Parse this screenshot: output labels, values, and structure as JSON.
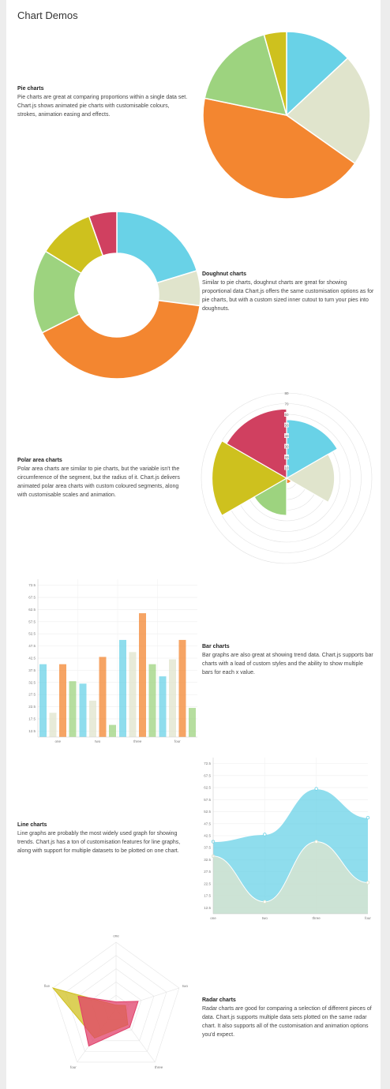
{
  "page": {
    "title": "Chart Demos"
  },
  "colors": {
    "blue": "#69D2E7",
    "light": "#E0E4CC",
    "orange": "#F38630",
    "green": "#9DD37F",
    "yellow": "#CEC11E",
    "red": "#D04060"
  },
  "sections": {
    "pie": {
      "heading": "Pie charts",
      "text": "Pie charts are great at comparing proportions within a single data set. Chart.js shows animated pie charts with customisable colours, strokes, animation easing and effects."
    },
    "doughnut": {
      "heading": "Doughnut charts",
      "text": "Similar to pie charts, doughnut charts are great for showing proportional data Chart.js offers the same customisation options as for pie charts, but with a custom sized inner cutout to turn your pies into doughnuts."
    },
    "polar": {
      "heading": "Polar area charts",
      "text": "Polar area charts are similar to pie charts, but the variable isn't the circumference of the segment, but the radius of it. Chart.js delivers animated polar area charts with custom coloured segments, along with customisable scales and animation."
    },
    "bar": {
      "heading": "Bar charts",
      "text": "Bar graphs are also great at showing trend data. Chart.js supports bar charts with a load of custom styles and the ability to show multiple bars for each x value."
    },
    "line": {
      "heading": "Line charts",
      "text": "Line graphs are probably the most widely used graph for showing trends. Chart.js has a ton of customisation features for line graphs, along with support for multiple datasets to be plotted on one chart."
    },
    "radar": {
      "heading": "Radar charts",
      "text": "Radar charts are good for comparing a selection of different pieces of data. Chart.js supports multiple data sets plotted on the same radar chart. It also supports all of the customisation and animation options you'd expect."
    }
  },
  "chart_data": [
    {
      "id": "pie",
      "type": "pie",
      "values": [
        30,
        50,
        100,
        40,
        10
      ],
      "colors": [
        "#69D2E7",
        "#E0E4CC",
        "#F38630",
        "#9DD37F",
        "#CEC11E"
      ]
    },
    {
      "id": "doughnut",
      "type": "doughnut",
      "values": [
        30,
        10,
        60,
        24,
        16,
        8
      ],
      "colors": [
        "#69D2E7",
        "#E0E4CC",
        "#F38630",
        "#9DD37F",
        "#CEC11E",
        "#D04060"
      ]
    },
    {
      "id": "polar",
      "type": "polarArea",
      "values": [
        55,
        45,
        5,
        35,
        70,
        65
      ],
      "colors": [
        "#69D2E7",
        "#E0E4CC",
        "#F38630",
        "#9DD37F",
        "#CEC11E",
        "#D04060"
      ],
      "scale_max": 80,
      "rings": [
        10,
        20,
        30,
        40,
        50,
        60,
        70,
        80
      ],
      "tick_labels": [
        "80",
        "70",
        "60",
        "50",
        "40",
        "30",
        "20",
        "10"
      ]
    },
    {
      "id": "bar",
      "type": "bar",
      "categories": [
        "one",
        "two",
        "three",
        "four"
      ],
      "ylim": [
        10,
        75
      ],
      "ytick_labels": [
        "72.5",
        "67.5",
        "62.5",
        "57.5",
        "52.5",
        "47.5",
        "42.5",
        "37.5",
        "32.5",
        "27.5",
        "22.5",
        "17.5",
        "12.5"
      ],
      "ytick_values": [
        72.5,
        67.5,
        62.5,
        57.5,
        52.5,
        47.5,
        42.5,
        37.5,
        32.5,
        27.5,
        22.5,
        17.5,
        12.5
      ],
      "series": [
        {
          "values": [
            40,
            32,
            50,
            35
          ],
          "color": "#69D2E7"
        },
        {
          "values": [
            20,
            25,
            45,
            42
          ],
          "color": "#E0E4CC"
        },
        {
          "values": [
            40,
            43,
            61,
            50
          ],
          "color": "#F38630"
        },
        {
          "values": [
            33,
            15,
            40,
            22
          ],
          "color": "#9DD37F"
        }
      ]
    },
    {
      "id": "line",
      "type": "area",
      "categories": [
        "one",
        "two",
        "three",
        "four"
      ],
      "ylim": [
        10,
        75
      ],
      "ytick_labels": [
        "72.5",
        "67.5",
        "62.5",
        "57.5",
        "52.5",
        "47.5",
        "42.5",
        "37.5",
        "32.5",
        "27.5",
        "22.5",
        "17.5",
        "12.5"
      ],
      "ytick_values": [
        72.5,
        67.5,
        62.5,
        57.5,
        52.5,
        47.5,
        42.5,
        37.5,
        32.5,
        27.5,
        22.5,
        17.5,
        12.5
      ],
      "series": [
        {
          "values": [
            40,
            43,
            62,
            50
          ],
          "color": "#69D2E7"
        },
        {
          "values": [
            34,
            15,
            40,
            23
          ],
          "color": "#E0E4CC"
        }
      ]
    },
    {
      "id": "radar",
      "type": "radar",
      "labels": [
        "one",
        "two",
        "three",
        "four",
        "five"
      ],
      "max": 100,
      "levels": 5,
      "series": [
        {
          "values": [
            5,
            15,
            30,
            55,
            100
          ],
          "color": "#D0C020"
        },
        {
          "values": [
            10,
            35,
            35,
            70,
            60
          ],
          "color": "#E0406A"
        }
      ]
    }
  ]
}
